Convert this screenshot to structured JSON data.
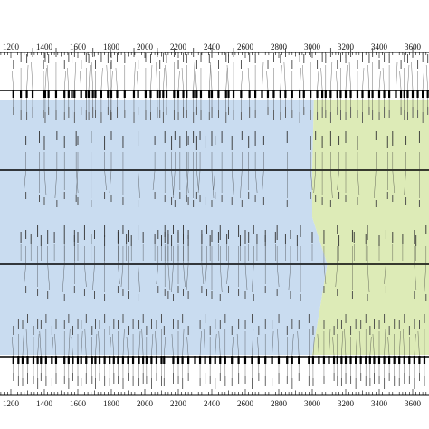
{
  "chart_data": {
    "type": "diagram",
    "title": "",
    "axis": {
      "range": [
        1100,
        3800
      ],
      "major_ticks": [
        1200,
        1400,
        1600,
        1800,
        2000,
        2200,
        2400,
        2600,
        2800,
        3000,
        3200,
        3400,
        3600
      ],
      "minor_step": 20
    },
    "regions": [
      {
        "name": "",
        "color": "#c9dcf0"
      },
      {
        "name": "",
        "color": "#ddebb7"
      }
    ],
    "region_boundary": [
      {
        "track": 0,
        "x": 3010
      },
      {
        "track": 1,
        "x": 3000
      },
      {
        "track": 2,
        "x": 3000
      },
      {
        "track": 3,
        "x": 3090
      },
      {
        "track": 4,
        "x": 3000
      }
    ],
    "tracks": [
      {
        "id": "track-1",
        "markers": [
          1215,
          1260,
          1295,
          1330,
          1395,
          1405,
          1425,
          1470,
          1520,
          1545,
          1565,
          1580,
          1620,
          1650,
          1665,
          1690,
          1705,
          1740,
          1780,
          1795,
          1800,
          1835,
          1880,
          1935,
          1960,
          2005,
          2035,
          2075,
          2090,
          2110,
          2130,
          2175,
          2200,
          2230,
          2250,
          2290,
          2310,
          2335,
          2385,
          2400,
          2440,
          2485,
          2500,
          2530,
          2575,
          2625,
          2660,
          2700,
          2735,
          2770,
          2810,
          2840,
          2880,
          2925,
          2950,
          2990,
          3030,
          3060,
          3080,
          3110,
          3150,
          3170,
          3200,
          3230,
          3270,
          3300,
          3340,
          3360,
          3400,
          3430,
          3460,
          3500,
          3530,
          3550,
          3570,
          3600,
          3630,
          3660,
          3690,
          3720,
          3750
        ]
      },
      {
        "id": "track-2",
        "markers": [
          1290,
          1370,
          1400,
          1475,
          1520,
          1590,
          1600,
          1680,
          1760,
          1800,
          1870,
          1960,
          2060,
          2120,
          2160,
          2180,
          2210,
          2250,
          2260,
          2290,
          2310,
          2330,
          2360,
          2400,
          2420,
          2460,
          2520,
          2580,
          2620,
          2660,
          2710,
          2850,
          2990,
          3020,
          3060,
          3110,
          3160,
          3200,
          3270,
          3380,
          3450,
          3480,
          3560,
          3640,
          3700
        ]
      },
      {
        "id": "track-3",
        "markers": [
          1290,
          1360,
          1420,
          1520,
          1580,
          1640,
          1700,
          1760,
          1840,
          1870,
          1900,
          1960,
          2080,
          2120,
          2140,
          2170,
          2200,
          2230,
          2260,
          2300,
          2340,
          2370,
          2400,
          2450,
          2500,
          2560,
          2600,
          2650,
          2720,
          2790,
          2870,
          2930,
          3070,
          3150,
          3240,
          3330,
          3440,
          3500,
          3610,
          3680
        ]
      },
      {
        "id": "track-4",
        "markers": [
          1260,
          1320,
          1380,
          1460,
          1520,
          1580,
          1600,
          1680,
          1760,
          1840,
          1890,
          1920,
          1990,
          2060,
          2100,
          2120,
          2140,
          2160,
          2200,
          2230,
          2260,
          2300,
          2340,
          2390,
          2440,
          2490,
          2570,
          2620,
          2670,
          2720,
          2780,
          2840,
          2910,
          3000,
          3100,
          3160,
          3250,
          3320,
          3400,
          3480,
          3540,
          3620,
          3700
        ]
      },
      {
        "id": "track-5",
        "markers": [
          1215,
          1245,
          1270,
          1300,
          1335,
          1360,
          1380,
          1410,
          1445,
          1470,
          1520,
          1545,
          1570,
          1600,
          1620,
          1650,
          1685,
          1705,
          1730,
          1760,
          1790,
          1815,
          1840,
          1870,
          1900,
          1930,
          1965,
          1990,
          2010,
          2040,
          2070,
          2100,
          2115,
          2170,
          2200,
          2225,
          2260,
          2300,
          2330,
          2360,
          2390,
          2420,
          2450,
          2480,
          2520,
          2560,
          2600,
          2640,
          2680,
          2720,
          2760,
          2800,
          2850,
          2880,
          2920,
          2980,
          3005,
          3040,
          3070,
          3100,
          3130,
          3150,
          3175,
          3200,
          3230,
          3260,
          3290,
          3320,
          3345,
          3370,
          3400,
          3430,
          3460,
          3490,
          3520,
          3550,
          3580,
          3610,
          3640,
          3670,
          3700,
          3730
        ]
      }
    ]
  }
}
